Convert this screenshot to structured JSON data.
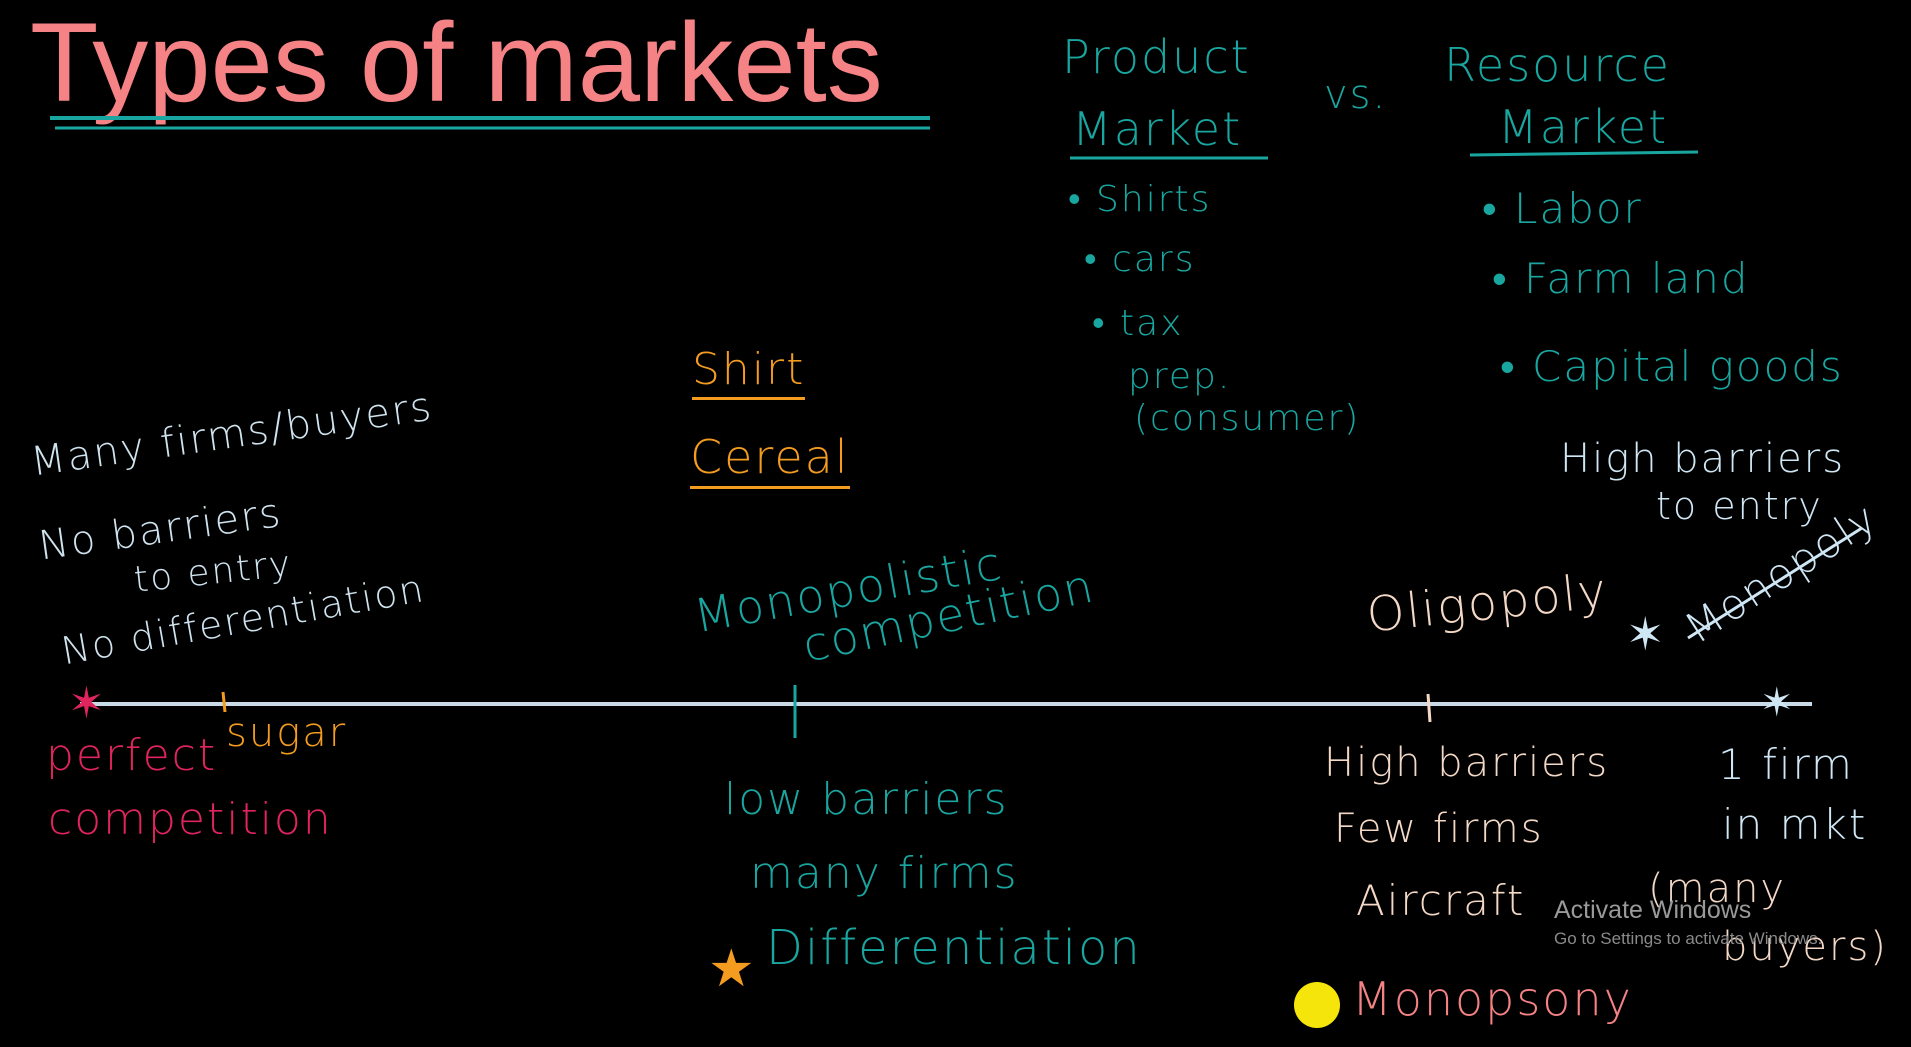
{
  "title": "Types of markets",
  "product": {
    "heading_line1": "Product",
    "heading_line2": "Market",
    "items": [
      "• Shirts",
      "• cars",
      "• tax",
      "prep.",
      "(consumer)"
    ]
  },
  "vs": "vs.",
  "resource": {
    "heading_line1": "Resource",
    "heading_line2": "Market",
    "items": [
      "• Labor",
      "• Farm land",
      "• Capital goods"
    ]
  },
  "examples": {
    "shirt": "Shirt",
    "cereal": "Cereal"
  },
  "perfect": {
    "notes": [
      "Many firms/buyers",
      "No barriers",
      "to entry",
      "No differentiation"
    ],
    "label_line1": "perfect",
    "label_line2": "competition",
    "example": "sugar"
  },
  "monopolistic": {
    "label_line1": "Monopolistic",
    "label_line2": "competition",
    "notes": [
      "low barriers",
      "many firms",
      "Differentiation"
    ]
  },
  "oligopoly": {
    "label": "Oligopoly",
    "notes": [
      "High barriers",
      "Few firms",
      "Aircraft"
    ],
    "buyers_line1": "(many",
    "buyers_line2": "buyers)"
  },
  "monopoly": {
    "notes_line1": "High barriers",
    "notes_line2": "to entry",
    "label": "Monopoly",
    "firm_line1": "1 firm",
    "firm_line2": "in mkt"
  },
  "monopsony": "Monopsony",
  "watermark": {
    "line1": "Activate Windows",
    "line2": "Go to Settings to activate Windows."
  },
  "colors": {
    "title": "#f58284",
    "teal": "#1aa6a0",
    "axis": "#c9dbe6",
    "orange": "#f39c1f",
    "pink": "#e0245e",
    "peach": "#f4d8c6",
    "yellow_dot": "#f5e50a"
  }
}
